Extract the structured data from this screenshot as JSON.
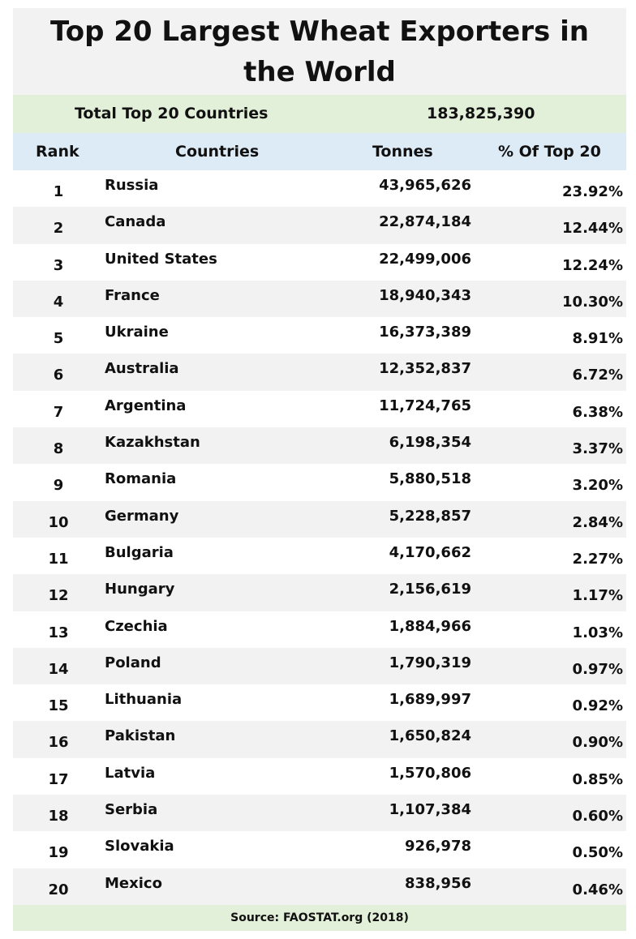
{
  "chart_data": {
    "type": "table",
    "title": "Top 20 Largest Wheat Exporters in the World",
    "total_label": "Total Top 20 Countries",
    "total_value": "183,825,390",
    "columns": [
      "Rank",
      "Countries",
      "Tonnes",
      "% Of Top 20"
    ],
    "rows": [
      {
        "rank": "1",
        "country": "Russia",
        "tonnes": "43,965,626",
        "pct": "23.92%"
      },
      {
        "rank": "2",
        "country": "Canada",
        "tonnes": "22,874,184",
        "pct": "12.44%"
      },
      {
        "rank": "3",
        "country": "United States",
        "tonnes": "22,499,006",
        "pct": "12.24%"
      },
      {
        "rank": "4",
        "country": "France",
        "tonnes": "18,940,343",
        "pct": "10.30%"
      },
      {
        "rank": "5",
        "country": "Ukraine",
        "tonnes": "16,373,389",
        "pct": "8.91%"
      },
      {
        "rank": "6",
        "country": "Australia",
        "tonnes": "12,352,837",
        "pct": "6.72%"
      },
      {
        "rank": "7",
        "country": "Argentina",
        "tonnes": "11,724,765",
        "pct": "6.38%"
      },
      {
        "rank": "8",
        "country": "Kazakhstan",
        "tonnes": "6,198,354",
        "pct": "3.37%"
      },
      {
        "rank": "9",
        "country": "Romania",
        "tonnes": "5,880,518",
        "pct": "3.20%"
      },
      {
        "rank": "10",
        "country": "Germany",
        "tonnes": "5,228,857",
        "pct": "2.84%"
      },
      {
        "rank": "11",
        "country": "Bulgaria",
        "tonnes": "4,170,662",
        "pct": "2.27%"
      },
      {
        "rank": "12",
        "country": "Hungary",
        "tonnes": "2,156,619",
        "pct": "1.17%"
      },
      {
        "rank": "13",
        "country": "Czechia",
        "tonnes": "1,884,966",
        "pct": "1.03%"
      },
      {
        "rank": "14",
        "country": "Poland",
        "tonnes": "1,790,319",
        "pct": "0.97%"
      },
      {
        "rank": "15",
        "country": "Lithuania",
        "tonnes": "1,689,997",
        "pct": "0.92%"
      },
      {
        "rank": "16",
        "country": "Pakistan",
        "tonnes": "1,650,824",
        "pct": "0.90%"
      },
      {
        "rank": "17",
        "country": "Latvia",
        "tonnes": "1,570,806",
        "pct": "0.85%"
      },
      {
        "rank": "18",
        "country": "Serbia",
        "tonnes": "1,107,384",
        "pct": "0.60%"
      },
      {
        "rank": "19",
        "country": "Slovakia",
        "tonnes": "926,978",
        "pct": "0.50%"
      },
      {
        "rank": "20",
        "country": "Mexico",
        "tonnes": "838,956",
        "pct": "0.46%"
      }
    ],
    "source": "Source:  FAOSTAT.org (2018)"
  },
  "colors": {
    "title_bg": "#f2f2f2",
    "total_bg": "#e2efd9",
    "header_bg": "#ddebf7",
    "row_alt_bg": "#f2f2f2",
    "source_bg": "#e2efd9"
  }
}
